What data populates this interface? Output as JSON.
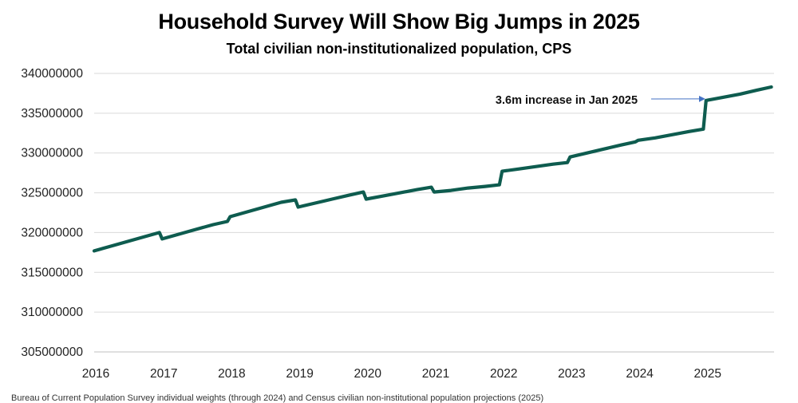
{
  "chart_data": {
    "type": "line",
    "title": "Household Survey Will Show Big Jumps in 2025",
    "subtitle": "Total civilian non-institutionalized population, CPS",
    "xlabel": "",
    "ylabel": "",
    "ylim": [
      305000000,
      340000000
    ],
    "xlim": [
      2016,
      2026
    ],
    "yticks": [
      "340000000",
      "335000000",
      "330000000",
      "325000000",
      "320000000",
      "315000000",
      "310000000",
      "305000000"
    ],
    "xticks": [
      "2016",
      "2017",
      "2018",
      "2019",
      "2020",
      "2021",
      "2022",
      "2023",
      "2024",
      "2025"
    ],
    "grid": true,
    "legend": "none",
    "line_color": "#0e5c4f",
    "series": [
      {
        "name": "Civilian non-institutionalized population",
        "points": [
          [
            2016.0,
            317700000
          ],
          [
            2016.25,
            318300000
          ],
          [
            2016.5,
            318900000
          ],
          [
            2016.75,
            319500000
          ],
          [
            2016.96,
            320000000
          ],
          [
            2017.0,
            319200000
          ],
          [
            2017.25,
            319800000
          ],
          [
            2017.5,
            320400000
          ],
          [
            2017.75,
            321000000
          ],
          [
            2017.96,
            321400000
          ],
          [
            2018.0,
            322000000
          ],
          [
            2018.25,
            322600000
          ],
          [
            2018.5,
            323200000
          ],
          [
            2018.75,
            323800000
          ],
          [
            2018.96,
            324100000
          ],
          [
            2019.0,
            323200000
          ],
          [
            2019.25,
            323700000
          ],
          [
            2019.5,
            324200000
          ],
          [
            2019.75,
            324700000
          ],
          [
            2019.96,
            325100000
          ],
          [
            2020.0,
            324200000
          ],
          [
            2020.25,
            324600000
          ],
          [
            2020.5,
            325000000
          ],
          [
            2020.75,
            325400000
          ],
          [
            2020.96,
            325700000
          ],
          [
            2021.0,
            325100000
          ],
          [
            2021.25,
            325300000
          ],
          [
            2021.5,
            325600000
          ],
          [
            2021.75,
            325800000
          ],
          [
            2021.96,
            326000000
          ],
          [
            2022.0,
            327700000
          ],
          [
            2022.25,
            328000000
          ],
          [
            2022.5,
            328300000
          ],
          [
            2022.75,
            328600000
          ],
          [
            2022.96,
            328800000
          ],
          [
            2023.0,
            329500000
          ],
          [
            2023.25,
            330000000
          ],
          [
            2023.5,
            330500000
          ],
          [
            2023.75,
            331000000
          ],
          [
            2023.96,
            331400000
          ],
          [
            2024.0,
            331600000
          ],
          [
            2024.25,
            331900000
          ],
          [
            2024.5,
            332300000
          ],
          [
            2024.75,
            332700000
          ],
          [
            2024.96,
            333000000
          ],
          [
            2025.0,
            336600000
          ],
          [
            2025.25,
            337000000
          ],
          [
            2025.5,
            337400000
          ],
          [
            2025.75,
            337900000
          ],
          [
            2025.96,
            338300000
          ]
        ]
      }
    ],
    "annotations": [
      {
        "text": "3.6m increase in Jan 2025",
        "x": 2025.0,
        "y": 336600000
      }
    ]
  },
  "footnote": "Bureau of Current Population Survey individual weights (through 2024) and Census civilian non-institutional population projections (2025)"
}
